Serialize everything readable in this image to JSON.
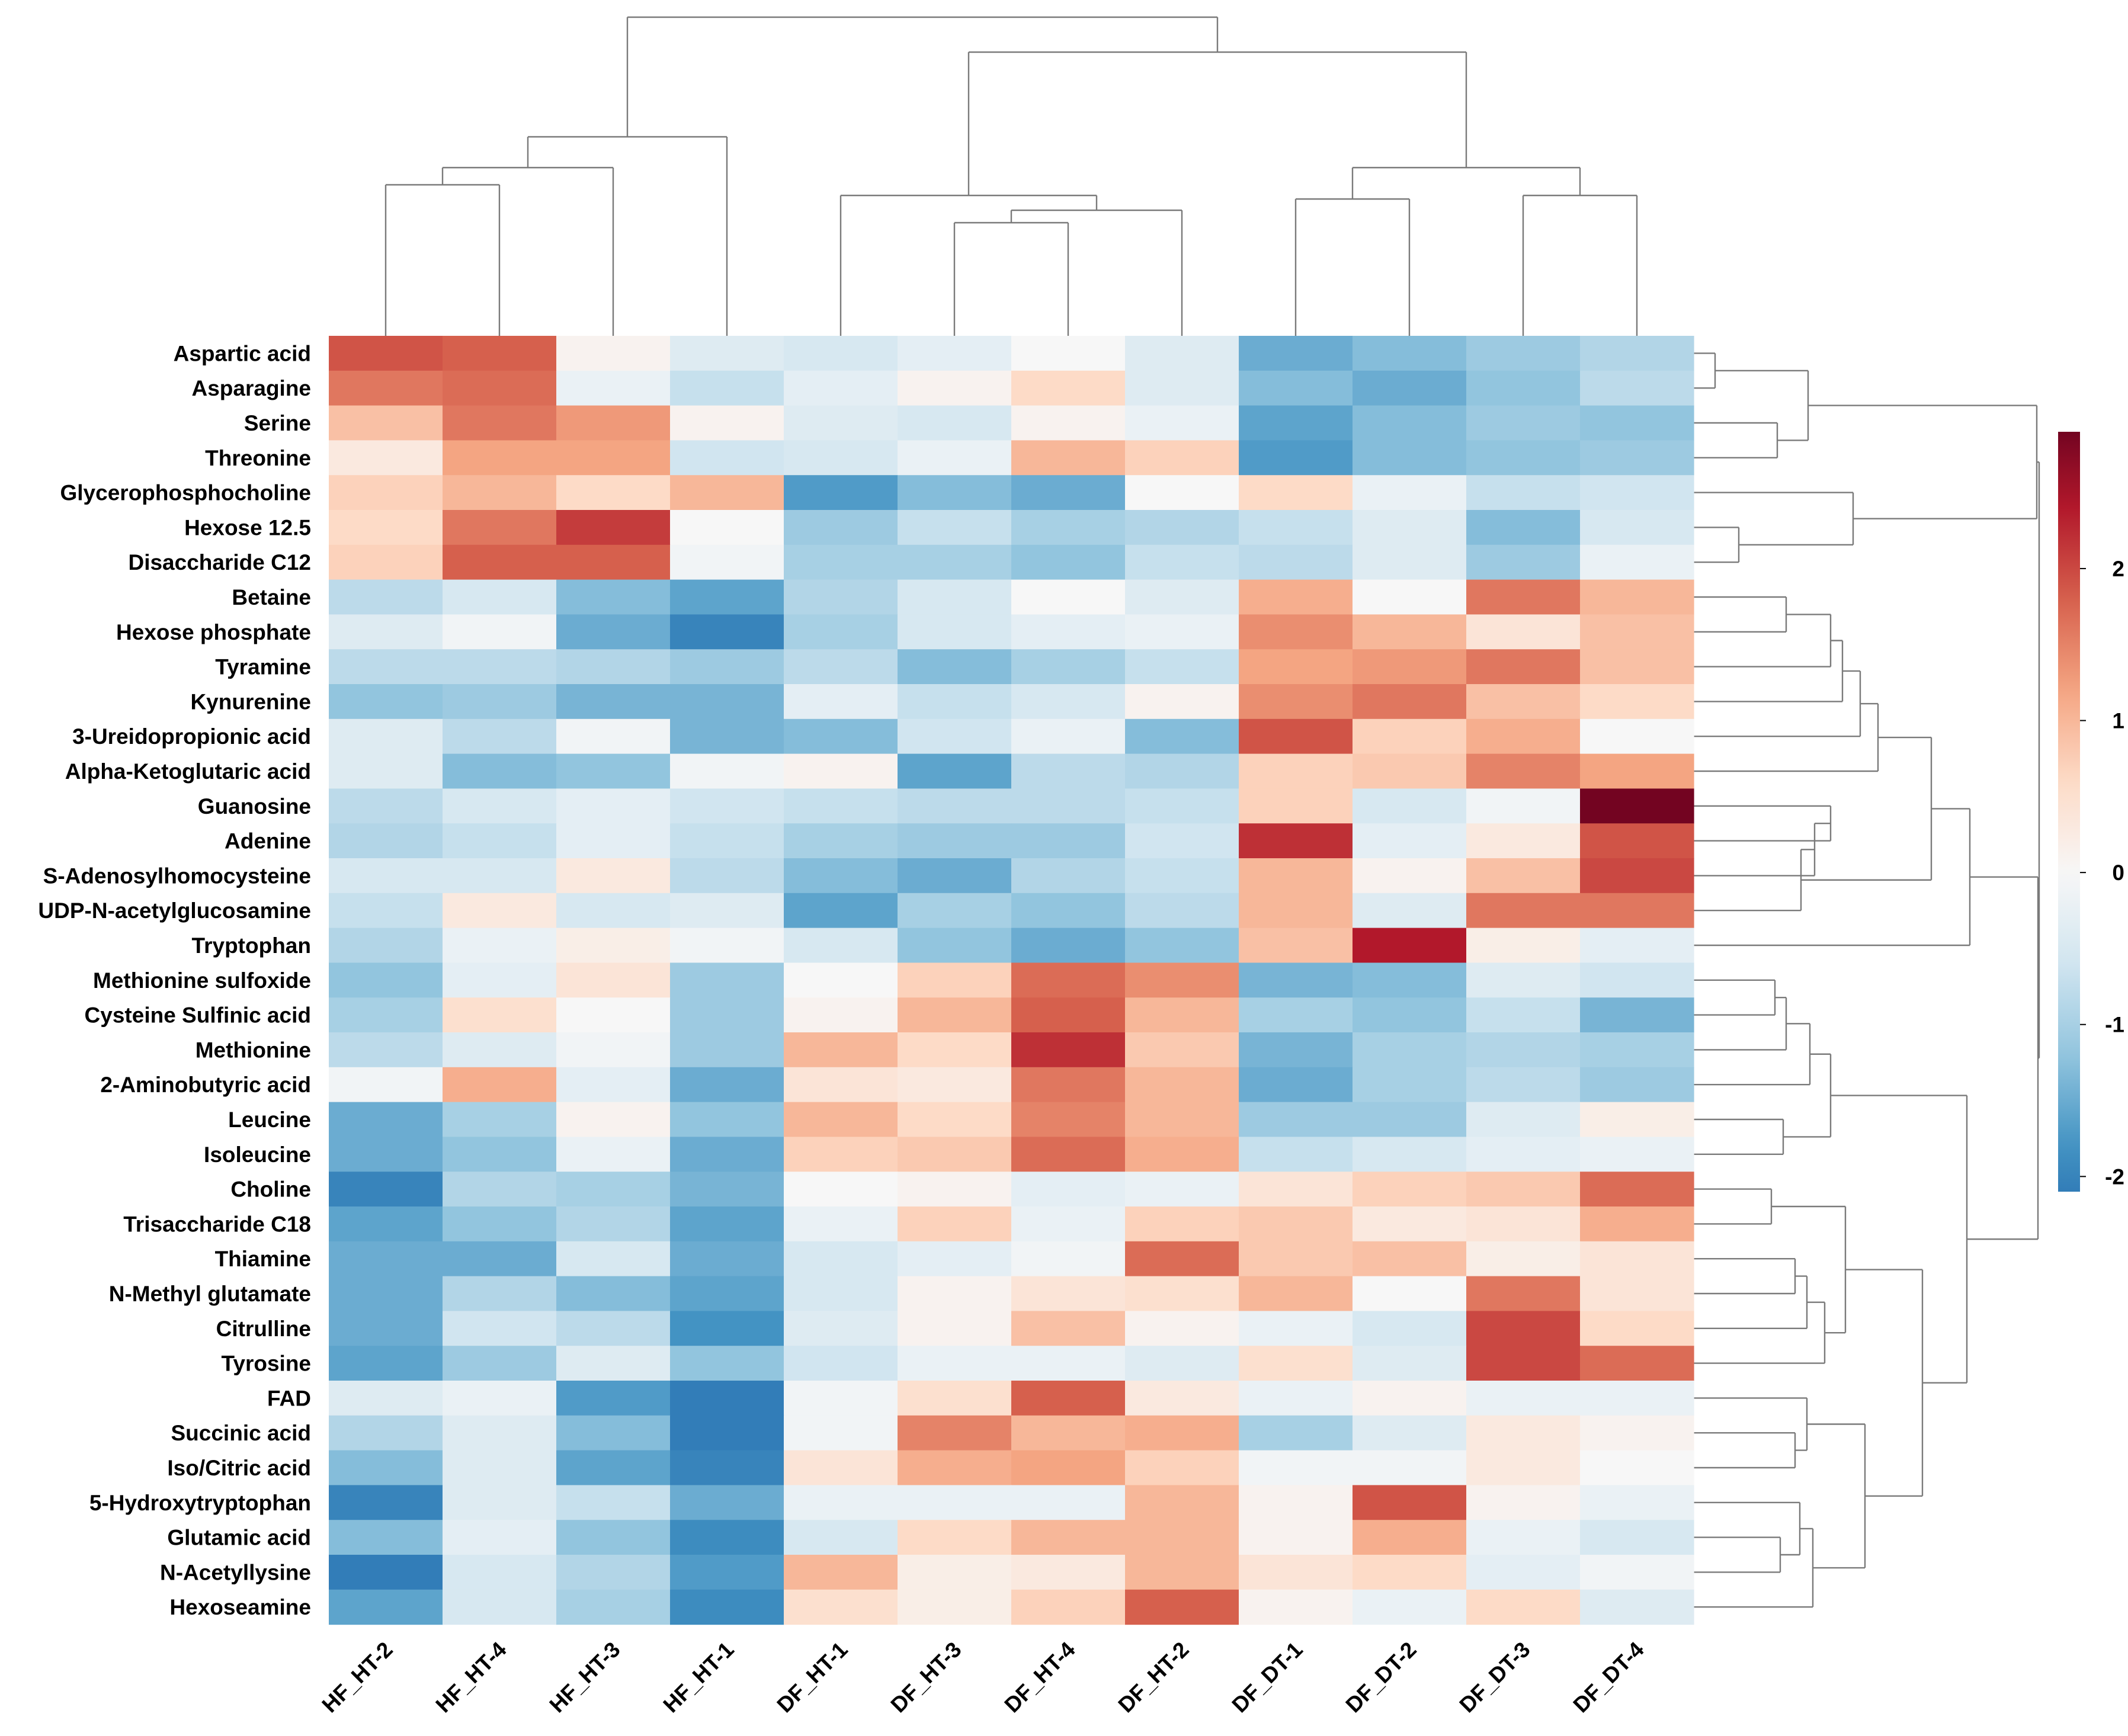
{
  "chart_data": {
    "type": "heatmap",
    "title": "",
    "xlabel": "",
    "ylabel": "",
    "columns": [
      "HF_HT-2",
      "HF_HT-4",
      "HF_HT-3",
      "HF_HT-1",
      "DF_HT-1",
      "DF_HT-3",
      "DF_HT-4",
      "DF_HT-2",
      "DF_DT-1",
      "DF_DT-2",
      "DF_DT-3",
      "DF_DT-4"
    ],
    "rows": [
      "Aspartic acid",
      "Asparagine",
      "Serine",
      "Threonine",
      "Glycerophosphocholine",
      "Hexose 12.5",
      "Disaccharide C12",
      "Betaine",
      "Hexose phosphate",
      "Tyramine",
      "Kynurenine",
      "3-Ureidopropionic acid",
      "Alpha-Ketoglutaric acid",
      "Guanosine",
      "Adenine",
      "S-Adenosylhomocysteine",
      "UDP-N-acetylglucosamine",
      "Tryptophan",
      "Methionine sulfoxide",
      "Cysteine Sulfinic acid",
      "Methionine",
      "2-Aminobutyric acid",
      "Leucine",
      "Isoleucine",
      "Choline",
      "Trisaccharide C18",
      "Thiamine",
      "N-Methyl glutamate",
      "Citrulline",
      "Tyrosine",
      "FAD",
      "Succinic acid",
      "Iso/Citric acid",
      "5-Hydroxytryptophan",
      "Glutamic acid",
      "N-Acetyllysine",
      "Hexoseamine"
    ],
    "values": [
      [
        1.9,
        1.8,
        0.1,
        -0.4,
        -0.5,
        -0.3,
        0.0,
        -0.4,
        -1.5,
        -1.3,
        -1.1,
        -0.9
      ],
      [
        1.6,
        1.7,
        -0.2,
        -0.7,
        -0.3,
        0.1,
        0.6,
        -0.4,
        -1.3,
        -1.5,
        -1.2,
        -0.8
      ],
      [
        0.9,
        1.6,
        1.3,
        0.1,
        -0.4,
        -0.5,
        0.1,
        -0.2,
        -1.6,
        -1.3,
        -1.1,
        -1.2
      ],
      [
        0.3,
        1.2,
        1.2,
        -0.6,
        -0.5,
        -0.2,
        1.0,
        0.7,
        -1.7,
        -1.3,
        -1.2,
        -1.1
      ],
      [
        0.7,
        1.0,
        0.6,
        1.0,
        -1.7,
        -1.3,
        -1.5,
        0.0,
        0.6,
        -0.2,
        -0.7,
        -0.6
      ],
      [
        0.6,
        1.6,
        2.1,
        0.0,
        -1.1,
        -0.7,
        -1.0,
        -0.9,
        -0.7,
        -0.4,
        -1.3,
        -0.5
      ],
      [
        0.7,
        1.8,
        1.8,
        -0.1,
        -1.0,
        -1.0,
        -1.2,
        -0.7,
        -0.8,
        -0.4,
        -1.1,
        -0.2
      ],
      [
        -0.8,
        -0.5,
        -1.3,
        -1.6,
        -0.9,
        -0.5,
        0.0,
        -0.4,
        1.1,
        0.0,
        1.6,
        1.0
      ],
      [
        -0.4,
        -0.1,
        -1.5,
        -2.0,
        -1.0,
        -0.5,
        -0.3,
        -0.2,
        1.4,
        1.0,
        0.4,
        0.9
      ],
      [
        -0.8,
        -0.8,
        -0.9,
        -1.1,
        -0.8,
        -1.3,
        -1.0,
        -0.7,
        1.2,
        1.3,
        1.6,
        0.9
      ],
      [
        -1.2,
        -1.1,
        -1.4,
        -1.4,
        -0.3,
        -0.7,
        -0.5,
        0.1,
        1.4,
        1.6,
        0.9,
        0.6
      ],
      [
        -0.4,
        -0.8,
        -0.1,
        -1.4,
        -1.3,
        -0.6,
        -0.2,
        -1.3,
        1.9,
        0.7,
        1.1,
        0.0
      ],
      [
        -0.4,
        -1.3,
        -1.2,
        -0.1,
        0.1,
        -1.6,
        -0.8,
        -0.9,
        0.7,
        0.8,
        1.5,
        1.2
      ],
      [
        -0.8,
        -0.5,
        -0.3,
        -0.6,
        -0.7,
        -0.8,
        -0.8,
        -0.7,
        0.7,
        -0.5,
        -0.1,
        2.9
      ],
      [
        -0.9,
        -0.7,
        -0.3,
        -0.7,
        -1.0,
        -1.1,
        -1.1,
        -0.6,
        2.2,
        -0.3,
        0.3,
        1.9
      ],
      [
        -0.5,
        -0.5,
        0.3,
        -0.8,
        -1.3,
        -1.5,
        -0.9,
        -0.7,
        1.0,
        0.1,
        0.9,
        2.0
      ],
      [
        -0.7,
        0.3,
        -0.5,
        -0.4,
        -1.6,
        -1.0,
        -1.2,
        -0.8,
        1.0,
        -0.4,
        1.6,
        1.6
      ],
      [
        -0.9,
        -0.2,
        0.2,
        -0.1,
        -0.5,
        -1.2,
        -1.5,
        -1.2,
        0.9,
        2.4,
        0.2,
        -0.3
      ],
      [
        -1.2,
        -0.3,
        0.4,
        -1.1,
        0.0,
        0.7,
        1.7,
        1.4,
        -1.4,
        -1.3,
        -0.4,
        -0.6
      ],
      [
        -1.0,
        0.5,
        0.0,
        -1.1,
        0.1,
        1.0,
        1.8,
        1.0,
        -1.0,
        -1.2,
        -0.7,
        -1.4
      ],
      [
        -0.8,
        -0.4,
        -0.1,
        -1.1,
        1.0,
        0.6,
        2.2,
        0.8,
        -1.4,
        -1.0,
        -0.9,
        -1.0
      ],
      [
        -0.1,
        1.1,
        -0.3,
        -1.5,
        0.4,
        0.3,
        1.6,
        1.0,
        -1.5,
        -1.0,
        -0.8,
        -1.1
      ],
      [
        -1.5,
        -1.0,
        0.1,
        -1.2,
        1.0,
        0.6,
        1.5,
        1.0,
        -1.1,
        -1.1,
        -0.4,
        0.2
      ],
      [
        -1.5,
        -1.2,
        -0.2,
        -1.5,
        0.7,
        0.8,
        1.7,
        1.1,
        -0.7,
        -0.5,
        -0.3,
        -0.2
      ],
      [
        -2.0,
        -0.9,
        -1.0,
        -1.4,
        0.0,
        0.1,
        -0.3,
        -0.2,
        0.4,
        0.7,
        0.8,
        1.7
      ],
      [
        -1.6,
        -1.2,
        -0.9,
        -1.6,
        -0.2,
        0.7,
        -0.2,
        0.7,
        0.8,
        0.3,
        0.4,
        1.1
      ],
      [
        -1.5,
        -1.5,
        -0.5,
        -1.5,
        -0.5,
        -0.3,
        -0.1,
        1.7,
        0.8,
        0.9,
        0.2,
        0.4
      ],
      [
        -1.5,
        -0.9,
        -1.3,
        -1.6,
        -0.5,
        0.1,
        0.4,
        0.5,
        1.0,
        0.0,
        1.6,
        0.4
      ],
      [
        -1.5,
        -0.6,
        -0.8,
        -1.8,
        -0.4,
        0.1,
        0.9,
        0.1,
        -0.2,
        -0.5,
        2.0,
        0.6
      ],
      [
        -1.6,
        -1.1,
        -0.4,
        -1.2,
        -0.6,
        -0.2,
        -0.2,
        -0.4,
        0.5,
        -0.4,
        2.0,
        1.7
      ],
      [
        -0.4,
        -0.2,
        -1.7,
        -2.1,
        -0.1,
        0.5,
        1.8,
        0.3,
        -0.2,
        0.1,
        -0.2,
        -0.2
      ],
      [
        -0.9,
        -0.4,
        -1.3,
        -2.1,
        -0.1,
        1.5,
        1.0,
        1.1,
        -1.0,
        -0.4,
        0.3,
        0.1
      ],
      [
        -1.3,
        -0.4,
        -1.6,
        -2.0,
        0.4,
        1.1,
        1.2,
        0.7,
        -0.1,
        -0.1,
        0.3,
        0.0
      ],
      [
        -2.0,
        -0.4,
        -0.7,
        -1.5,
        -0.2,
        -0.2,
        -0.2,
        1.0,
        0.1,
        1.9,
        0.1,
        -0.2
      ],
      [
        -1.3,
        -0.3,
        -1.2,
        -1.9,
        -0.5,
        0.6,
        1.0,
        1.0,
        0.1,
        1.1,
        -0.2,
        -0.5
      ],
      [
        -2.1,
        -0.5,
        -0.9,
        -1.7,
        1.0,
        0.2,
        0.3,
        1.0,
        0.4,
        0.6,
        -0.3,
        -0.1
      ],
      [
        -1.6,
        -0.5,
        -1.0,
        -1.9,
        0.5,
        0.2,
        0.7,
        1.8,
        0.1,
        -0.2,
        0.6,
        -0.4
      ]
    ],
    "colorbar": {
      "min": -2.1,
      "max": 2.9,
      "ticks": [
        -2,
        -1,
        0,
        1,
        2
      ],
      "tick_labels": [
        "-2",
        "-1",
        "0",
        "1",
        "2"
      ],
      "colors": [
        "#053061",
        "#2166ac",
        "#4393c3",
        "#92c5de",
        "#d1e5f0",
        "#f7f7f7",
        "#fddbc7",
        "#f4a582",
        "#d6604d",
        "#b2182b",
        "#67001f"
      ]
    },
    "legend_position": "right",
    "grid": false,
    "dendrograms": [
      "top",
      "right"
    ]
  }
}
